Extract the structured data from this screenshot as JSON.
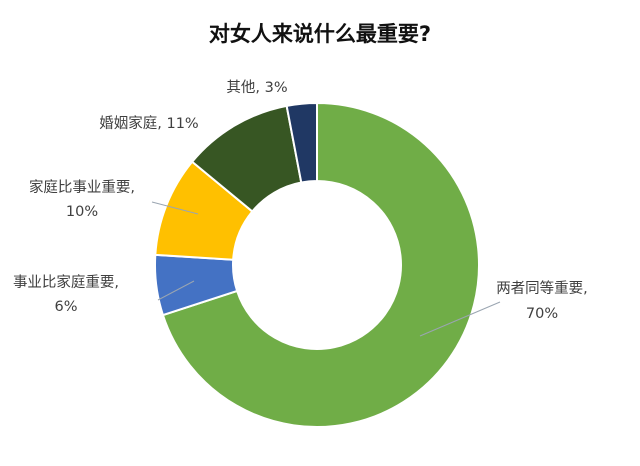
{
  "chart_data": {
    "type": "pie",
    "title": "对女人来说什么最重要?",
    "donut": true,
    "series": [
      {
        "label": "两者同等重要",
        "value": 70,
        "value_text": "70%",
        "color": "#70ad47"
      },
      {
        "label": "事业比家庭重要",
        "value": 6,
        "value_text": "6%",
        "color": "#4472c4"
      },
      {
        "label": "家庭比事业重要",
        "value": 10,
        "value_text": "10%",
        "color": "#ffc000"
      },
      {
        "label": "婚姻家庭",
        "value": 11,
        "value_text": "11%",
        "color": "#375623"
      },
      {
        "label": "其他",
        "value": 3,
        "value_text": "3%",
        "color": "#203864"
      }
    ]
  }
}
